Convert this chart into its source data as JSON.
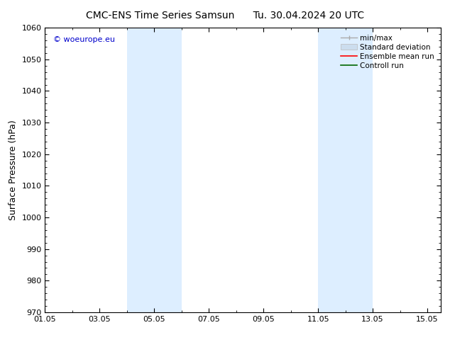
{
  "title_left": "CMC-ENS Time Series Samsun",
  "title_right": "Tu. 30.04.2024 20 UTC",
  "ylabel": "Surface Pressure (hPa)",
  "ylim": [
    970,
    1060
  ],
  "yticks": [
    970,
    980,
    990,
    1000,
    1010,
    1020,
    1030,
    1040,
    1050,
    1060
  ],
  "xlim_start": 0.0,
  "xlim_end": 14.5,
  "xtick_positions": [
    0,
    2,
    4,
    6,
    8,
    10,
    12,
    14
  ],
  "xtick_labels": [
    "01.05",
    "03.05",
    "05.05",
    "07.05",
    "09.05",
    "11.05",
    "13.05",
    "15.05"
  ],
  "shaded_bands": [
    {
      "x_start": 3.0,
      "x_end": 5.0
    },
    {
      "x_start": 10.0,
      "x_end": 12.0
    }
  ],
  "shaded_color": "#ddeeff",
  "background_color": "#ffffff",
  "watermark_text": "© woeurope.eu",
  "watermark_color": "#0000cc",
  "legend_entries": [
    {
      "label": "min/max",
      "color": "#aaaaaa",
      "lw": 1.0
    },
    {
      "label": "Standard deviation",
      "color": "#ccddee",
      "lw": 6
    },
    {
      "label": "Ensemble mean run",
      "color": "#ff0000",
      "lw": 1.2
    },
    {
      "label": "Controll run",
      "color": "#006600",
      "lw": 1.2
    }
  ],
  "title_fontsize": 10,
  "axis_label_fontsize": 9,
  "tick_fontsize": 8,
  "legend_fontsize": 7.5,
  "watermark_fontsize": 8
}
